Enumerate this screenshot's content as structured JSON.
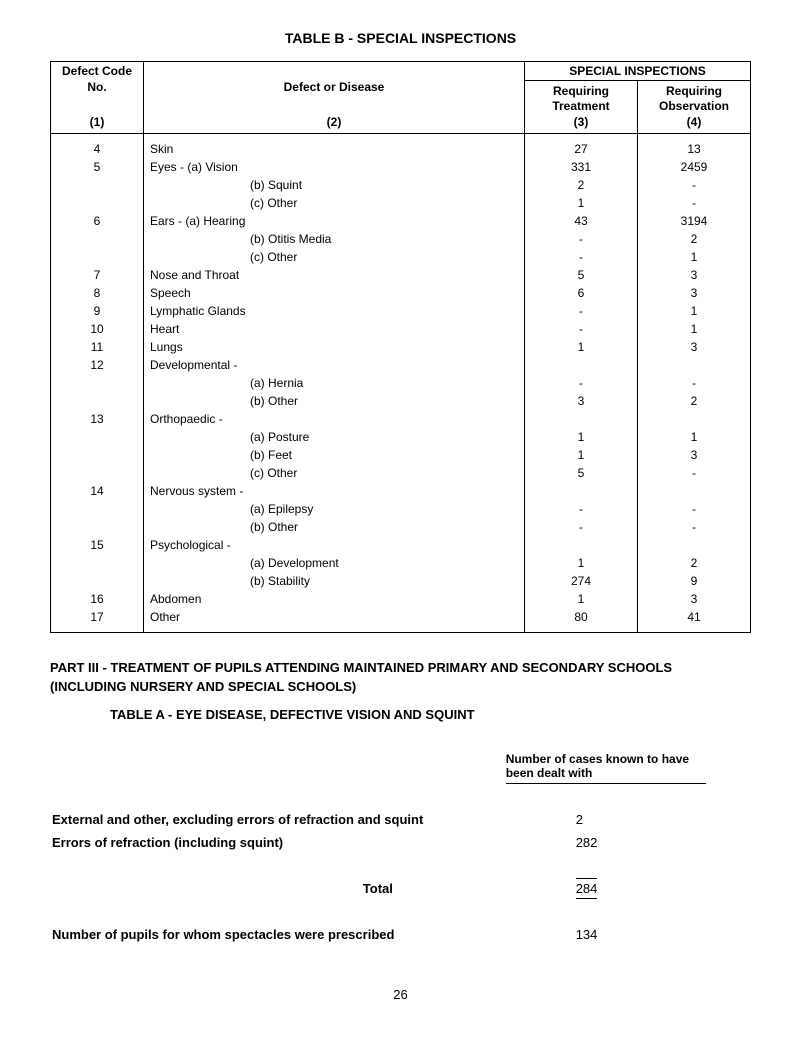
{
  "title": "TABLE B - SPECIAL INSPECTIONS",
  "header": {
    "defect_code": "Defect Code No.",
    "col1_num": "(1)",
    "disease": "Defect or Disease",
    "col2_num": "(2)",
    "special": "SPECIAL INSPECTIONS",
    "requiring_treatment": "Requiring Treatment",
    "col3_num": "(3)",
    "requiring_observation": "Requiring Observation",
    "col4_num": "(4)"
  },
  "rows": [
    {
      "code": "4",
      "disease": "Skin",
      "treat": "27",
      "obs": "13"
    },
    {
      "code": "5",
      "disease": "Eyes - (a) Vision",
      "treat": "331",
      "obs": "2459"
    },
    {
      "code": "",
      "disease_sub": "(b) Squint",
      "treat": "2",
      "obs": "-"
    },
    {
      "code": "",
      "disease_sub": "(c) Other",
      "treat": "1",
      "obs": "-"
    },
    {
      "code": "6",
      "disease": "Ears -  (a) Hearing",
      "treat": "43",
      "obs": "3194"
    },
    {
      "code": "",
      "disease_sub": "(b) Otitis Media",
      "treat": "-",
      "obs": "2"
    },
    {
      "code": "",
      "disease_sub": "(c) Other",
      "treat": "-",
      "obs": "1"
    },
    {
      "code": "7",
      "disease": "Nose and Throat",
      "treat": "5",
      "obs": "3"
    },
    {
      "code": "8",
      "disease": "Speech",
      "treat": "6",
      "obs": "3"
    },
    {
      "code": "9",
      "disease": "Lymphatic Glands",
      "treat": "-",
      "obs": "1"
    },
    {
      "code": "10",
      "disease": "Heart",
      "treat": "-",
      "obs": "1"
    },
    {
      "code": "11",
      "disease": "Lungs",
      "treat": "1",
      "obs": "3"
    },
    {
      "code": "12",
      "disease": "Developmental -",
      "treat": "",
      "obs": ""
    },
    {
      "code": "",
      "disease_sub": "(a) Hernia",
      "treat": "-",
      "obs": "-"
    },
    {
      "code": "",
      "disease_sub": "(b) Other",
      "treat": "3",
      "obs": "2"
    },
    {
      "code": "13",
      "disease": "Orthopaedic -",
      "treat": "",
      "obs": ""
    },
    {
      "code": "",
      "disease_sub": "(a) Posture",
      "treat": "1",
      "obs": "1"
    },
    {
      "code": "",
      "disease_sub": "(b) Feet",
      "treat": "1",
      "obs": "3"
    },
    {
      "code": "",
      "disease_sub": "(c) Other",
      "treat": "5",
      "obs": "-"
    },
    {
      "code": "14",
      "disease": "Nervous system -",
      "treat": "",
      "obs": ""
    },
    {
      "code": "",
      "disease_sub": "(a) Epilepsy",
      "treat": "-",
      "obs": "-"
    },
    {
      "code": "",
      "disease_sub": "(b) Other",
      "treat": "-",
      "obs": "-"
    },
    {
      "code": "15",
      "disease": "Psychological -",
      "treat": "",
      "obs": ""
    },
    {
      "code": "",
      "disease_sub": "(a) Development",
      "treat": "1",
      "obs": "2"
    },
    {
      "code": "",
      "disease_sub": "(b) Stability",
      "treat": "274",
      "obs": "9"
    },
    {
      "code": "16",
      "disease": "Abdomen",
      "treat": "1",
      "obs": "3"
    },
    {
      "code": "17",
      "disease": "Other",
      "treat": "80",
      "obs": "41"
    }
  ],
  "part3": {
    "title": "PART III - TREATMENT OF PUPILS ATTENDING MAINTAINED PRIMARY AND SECONDARY SCHOOLS (INCLUDING NURSERY AND SPECIAL SCHOOLS)",
    "table_a": "TABLE A - EYE DISEASE, DEFECTIVE VISION AND SQUINT",
    "cases_header": "Number of cases known to have been dealt with",
    "rows": [
      {
        "label": "External and other, excluding errors of refraction and squint",
        "val": "2"
      },
      {
        "label": "Errors of refraction (including squint)",
        "val": "282"
      }
    ],
    "total_label": "Total",
    "total_val": "284",
    "spectacles_label": "Number of pupils for whom spectacles were prescribed",
    "spectacles_val": "134"
  },
  "page_number": "26"
}
